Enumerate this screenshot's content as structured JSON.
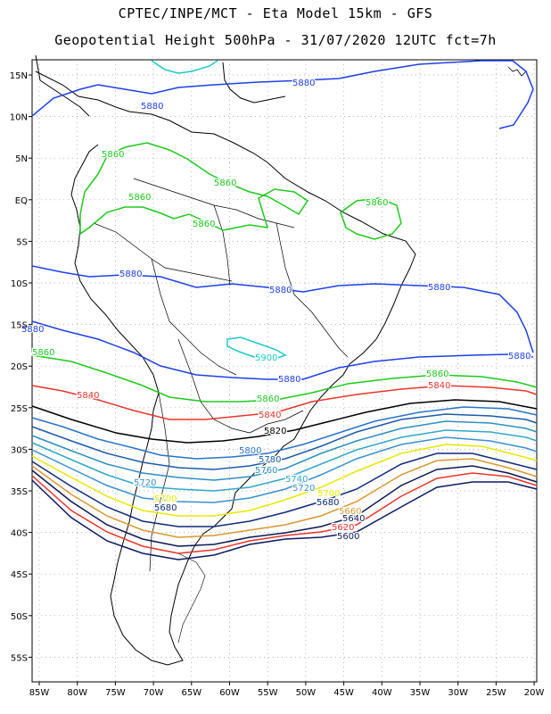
{
  "header": {
    "line1": "CPTEC/INPE/MCT  -  Eta Model 15km  -  GFS",
    "line2": "Geopotential Height 500hPa  -  31/07/2020 12UTC fct=7h"
  },
  "axes": {
    "lon_labels": [
      "85W",
      "80W",
      "75W",
      "70W",
      "65W",
      "60W",
      "55W",
      "50W",
      "45W",
      "40W",
      "35W",
      "30W",
      "25W",
      "20W"
    ],
    "lat_labels": [
      "15N",
      "10N",
      "5N",
      "EQ",
      "5S",
      "10S",
      "15S",
      "20S",
      "25S",
      "30S",
      "35S",
      "40S",
      "45S",
      "50S",
      "55S"
    ],
    "grid": "dotted"
  },
  "contours": [
    {
      "value": "5880",
      "color": "#1f3fe6"
    },
    {
      "value": "5860",
      "color": "#1ec81e"
    },
    {
      "value": "5840",
      "color": "#e8342c"
    },
    {
      "value": "5820",
      "color": "#000000"
    },
    {
      "value": "5800",
      "color": "#2a73c8"
    },
    {
      "value": "5780",
      "color": "#1d5aa8"
    },
    {
      "value": "5760",
      "color": "#2c8fc0"
    },
    {
      "value": "5740",
      "color": "#30a8c8"
    },
    {
      "value": "5720",
      "color": "#3a8fd0"
    },
    {
      "value": "5700",
      "color": "#e8e800"
    },
    {
      "value": "5680",
      "color": "#0e2a7a"
    },
    {
      "value": "5660",
      "color": "#d89830"
    },
    {
      "value": "5640",
      "color": "#0b1850"
    },
    {
      "value": "5620",
      "color": "#e8342c"
    },
    {
      "value": "5600",
      "color": "#0a1a60"
    }
  ],
  "labels": [
    {
      "text": "5880",
      "color": "#1f3fe6"
    },
    {
      "text": "5880",
      "color": "#1f3fe6"
    },
    {
      "text": "5880",
      "color": "#1f3fe6"
    },
    {
      "text": "5880",
      "color": "#1f3fe6"
    },
    {
      "text": "5880",
      "color": "#1f3fe6"
    },
    {
      "text": "5880",
      "color": "#1f3fe6"
    },
    {
      "text": "5880",
      "color": "#1f3fe6"
    },
    {
      "text": "5880",
      "color": "#1f3fe6"
    },
    {
      "text": "5860",
      "color": "#1ec81e"
    },
    {
      "text": "5860",
      "color": "#1ec81e"
    },
    {
      "text": "5860",
      "color": "#1ec81e"
    },
    {
      "text": "5860",
      "color": "#1ec81e"
    },
    {
      "text": "5860",
      "color": "#1ec81e"
    },
    {
      "text": "5860",
      "color": "#1ec81e"
    },
    {
      "text": "5860",
      "color": "#1ec81e"
    },
    {
      "text": "5860",
      "color": "#1ec81e"
    },
    {
      "text": "5900",
      "color": "#1ec8c8"
    },
    {
      "text": "5840",
      "color": "#e8342c"
    },
    {
      "text": "5840",
      "color": "#e8342c"
    },
    {
      "text": "5840",
      "color": "#e8342c"
    },
    {
      "text": "5820",
      "color": "#000000"
    },
    {
      "text": "5800",
      "color": "#2a73c8"
    },
    {
      "text": "5780",
      "color": "#1d5aa8"
    },
    {
      "text": "5760",
      "color": "#2c8fc0"
    },
    {
      "text": "5740",
      "color": "#30a8c8"
    },
    {
      "text": "5720",
      "color": "#3a8fd0"
    },
    {
      "text": "5720",
      "color": "#3a8fd0"
    },
    {
      "text": "5700",
      "color": "#e8e800"
    },
    {
      "text": "5700",
      "color": "#e8e800"
    },
    {
      "text": "5680",
      "color": "#0e2a7a"
    },
    {
      "text": "5680",
      "color": "#0e2a7a"
    },
    {
      "text": "5660",
      "color": "#d89830"
    },
    {
      "text": "5640",
      "color": "#0b1850"
    },
    {
      "text": "5620",
      "color": "#e8342c"
    },
    {
      "text": "5600",
      "color": "#0a1a60"
    }
  ]
}
